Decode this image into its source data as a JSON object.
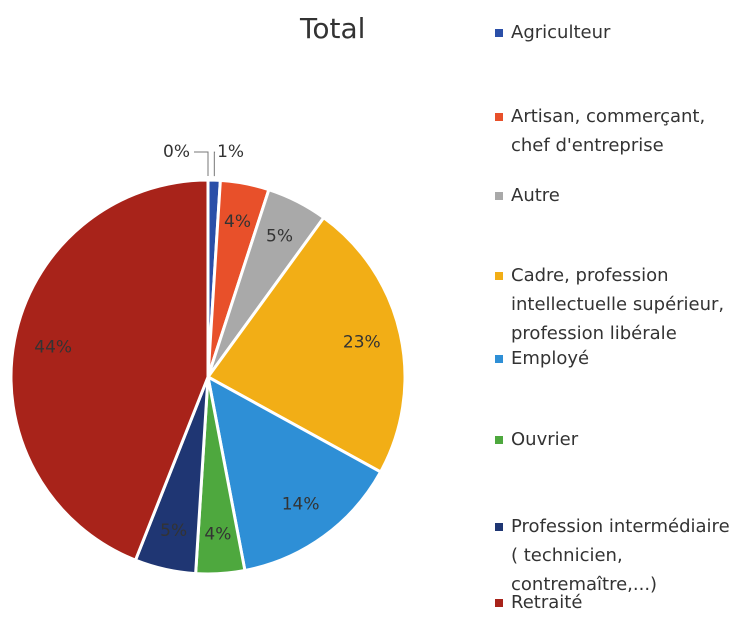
{
  "chart_data": {
    "type": "pie",
    "title": "Total",
    "categories": [
      null,
      "Agriculteur",
      "Artisan, commerçant, chef d'entreprise",
      "Autre",
      "Cadre, profession intellectuelle supérieur, profession libérale",
      "Employé",
      "Ouvrier",
      "Profession intermédiaire ( technicien, contremaître,...)",
      "Retraité"
    ],
    "values": [
      0,
      1,
      4,
      5,
      23,
      14,
      4,
      5,
      44
    ],
    "value_labels": [
      "0%",
      "1%",
      "4%",
      "5%",
      "23%",
      "14%",
      "4%",
      "5%",
      "44%"
    ],
    "colors": [
      "#dddddd",
      "#2b4fa8",
      "#e8502a",
      "#a9a9a9",
      "#f2ae16",
      "#2e8fd6",
      "#4ea83e",
      "#1f3673",
      "#a8231a"
    ],
    "legend": "right"
  }
}
